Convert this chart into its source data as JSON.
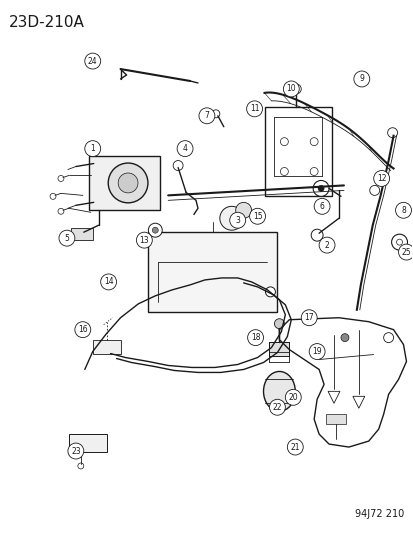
{
  "title": "23D-210A",
  "footer": "94J72 210",
  "bg_color": "#ffffff",
  "dk": "#1a1a1a",
  "title_fontsize": 11,
  "footer_fontsize": 7,
  "figsize": [
    4.14,
    5.33
  ],
  "dpi": 100
}
